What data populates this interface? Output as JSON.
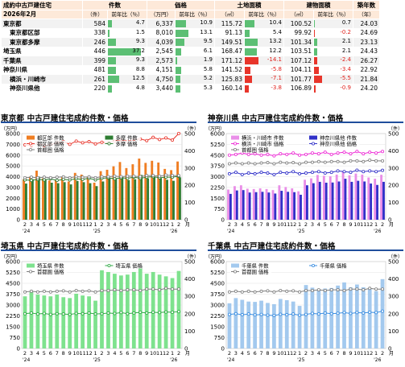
{
  "table": {
    "title_line1": "成約中古戸建住宅",
    "title_line2": "2026年2月",
    "col_count": "件数",
    "col_price": "価格",
    "col_land": "土地面積",
    "col_building": "建物面積",
    "col_age": "築年数",
    "u_count": "（件）",
    "u_yoy": "前年比（％）",
    "u_price": "（万円）",
    "u_land": "（㎡）",
    "u_age": "（年）",
    "rows": [
      {
        "name": "東京都",
        "count": "584",
        "count_yoy": "4.7",
        "count_yoy_num": 4.7,
        "price": "6,337",
        "price_yoy": "10.9",
        "price_yoy_num": 10.9,
        "land": "115.72",
        "land_yoy": "10.4",
        "land_yoy_num": 10.4,
        "bldg": "100.52",
        "bldg_yoy": "0.7",
        "bldg_yoy_num": 0.7,
        "age": "24.03"
      },
      {
        "name": "東京都区部",
        "count": "338",
        "count_yoy": "1.5",
        "count_yoy_num": 1.5,
        "price": "8,010",
        "price_yoy": "13.1",
        "price_yoy_num": 13.1,
        "land": "91.13",
        "land_yoy": "5.4",
        "land_yoy_num": 5.4,
        "bldg": "99.92",
        "bldg_yoy": "-0.2",
        "bldg_yoy_num": -0.2,
        "age": "24.69"
      },
      {
        "name": "東京都多摩",
        "count": "246",
        "count_yoy": "9.3",
        "count_yoy_num": 9.3,
        "price": "4,039",
        "price_yoy": "9.5",
        "price_yoy_num": 9.5,
        "land": "149.51",
        "land_yoy": "13.2",
        "land_yoy_num": 13.2,
        "bldg": "101.34",
        "bldg_yoy": "2.1",
        "bldg_yoy_num": 2.1,
        "age": "23.13"
      },
      {
        "name": "埼玉県",
        "count": "446",
        "count_yoy": "37.2",
        "count_yoy_num": 37.2,
        "price": "2,545",
        "price_yoy": "6.1",
        "price_yoy_num": 6.1,
        "land": "168.47",
        "land_yoy": "12.2",
        "land_yoy_num": 12.2,
        "bldg": "103.51",
        "bldg_yoy": "2.1",
        "bldg_yoy_num": 2.1,
        "age": "24.43"
      },
      {
        "name": "千葉県",
        "count": "399",
        "count_yoy": "9.3",
        "count_yoy_num": 9.3,
        "price": "2,573",
        "price_yoy": "1.9",
        "price_yoy_num": 1.9,
        "land": "171.12",
        "land_yoy": "-14.1",
        "land_yoy_num": -14.1,
        "bldg": "107.12",
        "bldg_yoy": "-2.4",
        "bldg_yoy_num": -2.4,
        "age": "26.27"
      },
      {
        "name": "神奈川県",
        "count": "481",
        "count_yoy": "8.8",
        "count_yoy_num": 8.8,
        "price": "4,151",
        "price_yoy": "5.8",
        "price_yoy_num": 5.8,
        "land": "141.52",
        "land_yoy": "-5.8",
        "land_yoy_num": -5.8,
        "bldg": "104.11",
        "bldg_yoy": "-3.4",
        "bldg_yoy_num": -3.4,
        "age": "22.92"
      },
      {
        "name": "横浜・川崎市",
        "count": "261",
        "count_yoy": "12.5",
        "count_yoy_num": 12.5,
        "price": "4,750",
        "price_yoy": "5.2",
        "price_yoy_num": 5.2,
        "land": "125.83",
        "land_yoy": "-7.1",
        "land_yoy_num": -7.1,
        "bldg": "101.77",
        "bldg_yoy": "-5.5",
        "bldg_yoy_num": -5.5,
        "age": "21.84"
      },
      {
        "name": "神奈川県他",
        "count": "220",
        "count_yoy": "4.8",
        "count_yoy_num": 4.8,
        "price": "3,440",
        "price_yoy": "5.3",
        "price_yoy_num": 5.3,
        "land": "160.14",
        "land_yoy": "-3.8",
        "land_yoy_num": -3.8,
        "bldg": "106.89",
        "bldg_yoy": "-0.9",
        "bldg_yoy_num": -0.9,
        "age": "24.20"
      }
    ]
  },
  "colors": {
    "positive_bar": "#5cbf74",
    "negative_bar": "#e8352b",
    "rule": "#1f4e9c"
  },
  "chart_data": [
    {
      "type": "bar",
      "title": "東京都 中古戸建住宅成約件数・価格",
      "y_unit": "（万円）",
      "y2_unit": "（件）",
      "ylim": [
        0,
        8000
      ],
      "y2lim": [
        0,
        500
      ],
      "x_labels": [
        "2",
        "3",
        "4",
        "5",
        "6",
        "7",
        "8",
        "9",
        "10",
        "11",
        "12",
        "1",
        "2",
        "3",
        "4",
        "5",
        "6",
        "7",
        "8",
        "9",
        "10",
        "11",
        "12",
        "1",
        "2"
      ],
      "x_unit": "月",
      "year_labels": [
        {
          "label": "'24",
          "at": 0
        },
        {
          "label": "'25",
          "at": 11
        },
        {
          "label": "'26",
          "at": 23
        }
      ],
      "series": [
        {
          "name": "都区部 件数",
          "kind": "bar",
          "axis": "y2",
          "color": "#ef7d22",
          "values": [
            235,
            250,
            285,
            240,
            228,
            230,
            248,
            222,
            272,
            262,
            250,
            215,
            282,
            290,
            310,
            335,
            300,
            322,
            355,
            330,
            342,
            332,
            295,
            288,
            338
          ]
        },
        {
          "name": "多摩 件数",
          "kind": "bar",
          "axis": "y2",
          "color": "#2e7d32",
          "values": [
            210,
            235,
            250,
            232,
            215,
            212,
            218,
            205,
            225,
            218,
            212,
            195,
            222,
            240,
            238,
            248,
            230,
            235,
            260,
            240,
            248,
            242,
            232,
            226,
            246
          ]
        },
        {
          "name": "都区部 価格",
          "kind": "line",
          "axis": "y",
          "color": "#e8352b",
          "values": [
            6950,
            6900,
            7100,
            6900,
            6950,
            7150,
            7250,
            7000,
            7300,
            7150,
            7250,
            7050,
            7200,
            7150,
            7300,
            7400,
            7300,
            7450,
            7500,
            7350,
            7650,
            7450,
            7600,
            7400,
            8010
          ]
        },
        {
          "name": "多摩 価格",
          "kind": "line",
          "axis": "y",
          "color": "#2e7d32",
          "values": [
            3700,
            3650,
            3750,
            3700,
            3800,
            3650,
            3750,
            3700,
            3800,
            3750,
            3850,
            3700,
            3850,
            3900,
            3800,
            3900,
            3850,
            3950,
            3850,
            3950,
            4000,
            3900,
            3950,
            3950,
            4039
          ]
        },
        {
          "name": "首都圏 価格",
          "kind": "line",
          "axis": "y",
          "color": "#7f7f7f",
          "values": [
            3900,
            3950,
            3900,
            3950,
            3900,
            3950,
            3980,
            3900,
            4000,
            3950,
            3980,
            3900,
            4000,
            4000,
            4050,
            4000,
            4050,
            4050,
            4000,
            4100,
            4100,
            4050,
            4150,
            4100,
            4100
          ]
        }
      ]
    },
    {
      "type": "bar",
      "title": "神奈川県 中古戸建住宅成約件数・価格",
      "y_unit": "（万円）",
      "y2_unit": "（件）",
      "ylim": [
        0,
        6000
      ],
      "y2lim": [
        0,
        500
      ],
      "x_labels": [
        "2",
        "3",
        "4",
        "5",
        "6",
        "7",
        "8",
        "9",
        "10",
        "11",
        "12",
        "1",
        "2",
        "3",
        "4",
        "5",
        "6",
        "7",
        "8",
        "9",
        "10",
        "11",
        "12",
        "1",
        "2"
      ],
      "x_unit": "月",
      "year_labels": [
        {
          "label": "'24",
          "at": 0
        },
        {
          "label": "'25",
          "at": 11
        },
        {
          "label": "'26",
          "at": 23
        }
      ],
      "series": [
        {
          "name": "横浜・川崎市 件数",
          "kind": "bar",
          "axis": "y2",
          "color": "#e98ee8",
          "values": [
            175,
            195,
            200,
            180,
            178,
            182,
            178,
            172,
            200,
            190,
            182,
            165,
            232,
            240,
            260,
            255,
            252,
            262,
            282,
            258,
            268,
            262,
            245,
            238,
            261
          ]
        },
        {
          "name": "神奈川県他 件数",
          "kind": "bar",
          "axis": "y2",
          "color": "#3030c8",
          "values": [
            150,
            170,
            172,
            158,
            160,
            162,
            158,
            152,
            168,
            162,
            160,
            145,
            200,
            212,
            220,
            215,
            216,
            222,
            238,
            220,
            226,
            222,
            210,
            202,
            220
          ]
        },
        {
          "name": "横浜・川崎市 価格",
          "kind": "line",
          "axis": "y",
          "color": "#ee2bd6",
          "values": [
            4500,
            4550,
            4650,
            4550,
            4600,
            4500,
            4550,
            4450,
            4600,
            4550,
            4650,
            4500,
            4550,
            4650,
            4600,
            4700,
            4550,
            4650,
            4700,
            4600,
            4750,
            4600,
            4700,
            4650,
            4750
          ]
        },
        {
          "name": "神奈川県他 価格",
          "kind": "line",
          "axis": "y",
          "color": "#3030c8",
          "values": [
            3200,
            3300,
            3150,
            3250,
            3200,
            3300,
            3250,
            3150,
            3300,
            3250,
            3350,
            3200,
            3250,
            3300,
            3350,
            3250,
            3300,
            3400,
            3350,
            3300,
            3450,
            3350,
            3400,
            3350,
            3440
          ]
        },
        {
          "name": "首都圏 価格",
          "kind": "line",
          "axis": "y",
          "color": "#7f7f7f",
          "values": [
            3900,
            3950,
            3900,
            3950,
            3900,
            3950,
            3980,
            3900,
            4000,
            3950,
            3980,
            3900,
            4000,
            4000,
            4050,
            4000,
            4050,
            4050,
            4000,
            4100,
            4100,
            4050,
            4150,
            4100,
            4100
          ]
        }
      ]
    },
    {
      "type": "bar",
      "title": "埼玉県 中古戸建住宅成約件数・価格",
      "y_unit": "（万円）",
      "y2_unit": "（件）",
      "ylim": [
        0,
        6000
      ],
      "y2lim": [
        0,
        500
      ],
      "x_labels": [
        "2",
        "3",
        "4",
        "5",
        "6",
        "7",
        "8",
        "9",
        "10",
        "11",
        "12",
        "1",
        "2",
        "3",
        "4",
        "5",
        "6",
        "7",
        "8",
        "9",
        "10",
        "11",
        "12",
        "1",
        "2"
      ],
      "x_unit": "月",
      "year_labels": [
        {
          "label": "'24",
          "at": 0
        },
        {
          "label": "'25",
          "at": 11
        },
        {
          "label": "'26",
          "at": 23
        }
      ],
      "series": [
        {
          "name": "埼玉県 件数",
          "kind": "bar",
          "axis": "y2",
          "color": "#7ee28e",
          "values": [
            300,
            325,
            310,
            305,
            300,
            310,
            295,
            290,
            315,
            305,
            300,
            275,
            450,
            440,
            430,
            420,
            425,
            440,
            460,
            430,
            440,
            425,
            415,
            405,
            446
          ]
        },
        {
          "name": "埼玉県 価格",
          "kind": "line",
          "axis": "y",
          "color": "#2eaa44",
          "values": [
            2400,
            2450,
            2380,
            2420,
            2350,
            2400,
            2380,
            2350,
            2420,
            2400,
            2450,
            2380,
            2400,
            2450,
            2420,
            2480,
            2400,
            2450,
            2500,
            2450,
            2500,
            2480,
            2520,
            2500,
            2545
          ]
        },
        {
          "name": "首都圏 価格",
          "kind": "line",
          "axis": "y",
          "color": "#7f7f7f",
          "values": [
            3900,
            3950,
            3900,
            3950,
            3900,
            3950,
            3980,
            3900,
            4000,
            3950,
            3980,
            3900,
            4000,
            4000,
            4050,
            4000,
            4050,
            4050,
            4000,
            4100,
            4100,
            4050,
            4150,
            4100,
            4100
          ]
        }
      ]
    },
    {
      "type": "bar",
      "title": "千葉県 中古戸建住宅成約件数・価格",
      "y_unit": "（万円）",
      "y2_unit": "（件）",
      "ylim": [
        0,
        6000
      ],
      "y2lim": [
        0,
        500
      ],
      "x_labels": [
        "2",
        "3",
        "4",
        "5",
        "6",
        "7",
        "8",
        "9",
        "10",
        "11",
        "12",
        "1",
        "2",
        "3",
        "4",
        "5",
        "6",
        "7",
        "8",
        "9",
        "10",
        "11",
        "12",
        "1",
        "2"
      ],
      "x_unit": "月",
      "year_labels": [
        {
          "label": "'24",
          "at": 0
        },
        {
          "label": "'25",
          "at": 11
        },
        {
          "label": "'26",
          "at": 23
        }
      ],
      "series": [
        {
          "name": "千葉県 件数",
          "kind": "bar",
          "axis": "y2",
          "color": "#a3c9ee",
          "values": [
            260,
            290,
            280,
            270,
            268,
            275,
            262,
            255,
            285,
            278,
            270,
            245,
            365,
            350,
            340,
            345,
            348,
            362,
            380,
            352,
            368,
            352,
            342,
            330,
            399
          ]
        },
        {
          "name": "千葉県 価格",
          "kind": "line",
          "axis": "y",
          "color": "#3a8de0",
          "values": [
            2350,
            2400,
            2330,
            2380,
            2320,
            2350,
            2300,
            2280,
            2360,
            2330,
            2380,
            2300,
            2350,
            2420,
            2380,
            2450,
            2400,
            2430,
            2480,
            2420,
            2480,
            2450,
            2500,
            2480,
            2573
          ]
        },
        {
          "name": "首都圏 価格",
          "kind": "line",
          "axis": "y",
          "color": "#7f7f7f",
          "values": [
            3900,
            3950,
            3900,
            3950,
            3900,
            3950,
            3980,
            3900,
            4000,
            3950,
            3980,
            3900,
            4000,
            4000,
            4050,
            4000,
            4050,
            4050,
            4000,
            4100,
            4100,
            4050,
            4150,
            4100,
            4100
          ]
        }
      ]
    }
  ]
}
